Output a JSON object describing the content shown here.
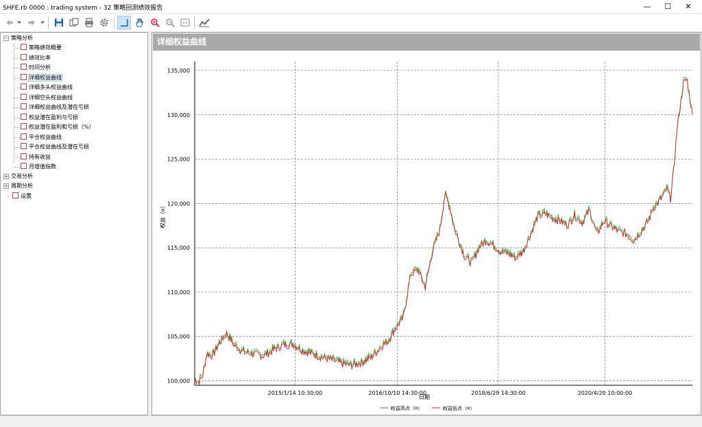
{
  "window": {
    "title": "SHFE.rb 0000 : trading system - 32 策略回测绩效报告",
    "minimize": "—",
    "maximize": "☐",
    "close": "✕"
  },
  "toolbar": {
    "back_icon": "arrow-left-icon",
    "dropdown_icon": "chevron-down-icon",
    "forward_icon": "arrow-right-icon",
    "save_icon": "save-icon",
    "copy_icon": "copy-icon",
    "print_icon": "print-icon",
    "settings_icon": "gear-icon",
    "crosshair_icon": "crosshair-icon",
    "hand_icon": "hand-icon",
    "zoom_in_icon": "zoom-in-icon",
    "zoom_out_icon": "zoom-out-icon",
    "fit_icon": "fit-icon",
    "chart_icon": "chart-icon"
  },
  "tree": {
    "root": "策略分析",
    "items": [
      "策略绩效概要",
      "绩效比率",
      "时间分析",
      "详细权益曲线",
      "详细多头权益曲线",
      "详细空头权益曲线",
      "详细权益曲线及潜在亏损",
      "权益潜在盈利与亏损",
      "权益潜在盈利和亏损（%）",
      "平仓权益曲线",
      "平仓权益曲线及潜在亏损",
      "持有收益",
      "月增值指数"
    ],
    "selected_index": 3,
    "groups": [
      "交易分析",
      "周期分析"
    ],
    "settings": "设置"
  },
  "panel": {
    "title": "详细权益曲线"
  },
  "chart_data": {
    "type": "line",
    "xlabel": "日期",
    "ylabel": "权益（¤）",
    "ylim": [
      99500,
      136000
    ],
    "y_ticks": [
      100000,
      105000,
      110000,
      115000,
      120000,
      125000,
      130000,
      135000
    ],
    "y_tick_labels": [
      "100,000",
      "105,000",
      "110,000",
      "115,000",
      "120,000",
      "125,000",
      "130,000",
      "135,000"
    ],
    "x_tick_labels": [
      "2015/1/14 10:30:00",
      "2016/10/10 14:30:00",
      "2018/6/29 14:30:00",
      "2020/4/20 10:00:00"
    ],
    "x_range": [
      "2013-05-01",
      "2021-10-15"
    ],
    "x_ticks": [
      "2015-01-14",
      "2016-10-10",
      "2018-06-29",
      "2020-04-20"
    ],
    "grid": true,
    "legend_position": "bottom",
    "series": [
      {
        "name": "权益高点（¤）",
        "color": "#2ca02c"
      },
      {
        "name": "权益低点（¤）",
        "color": "#d62728"
      }
    ],
    "x": [
      "2013-05-01",
      "2013-05-25",
      "2013-06-20",
      "2013-07-15",
      "2013-08-20",
      "2013-10-01",
      "2013-11-15",
      "2014-01-01",
      "2014-03-01",
      "2014-05-01",
      "2014-07-01",
      "2014-09-01",
      "2014-11-01",
      "2015-01-01",
      "2015-03-01",
      "2015-05-01",
      "2015-07-01",
      "2015-09-01",
      "2015-11-01",
      "2016-01-01",
      "2016-03-01",
      "2016-05-01",
      "2016-07-01",
      "2016-08-15",
      "2016-10-01",
      "2016-11-15",
      "2017-01-01",
      "2017-02-15",
      "2017-04-01",
      "2017-05-15",
      "2017-07-01",
      "2017-08-01",
      "2017-09-01",
      "2017-10-01",
      "2017-11-01",
      "2017-12-01",
      "2018-01-15",
      "2018-03-01",
      "2018-04-15",
      "2018-06-01",
      "2018-07-15",
      "2018-09-01",
      "2018-10-15",
      "2018-12-01",
      "2019-01-15",
      "2019-03-01",
      "2019-04-15",
      "2019-06-01",
      "2019-07-15",
      "2019-09-01",
      "2019-10-15",
      "2019-12-01",
      "2020-01-15",
      "2020-03-01",
      "2020-04-15",
      "2020-06-01",
      "2020-07-15",
      "2020-09-01",
      "2020-10-15",
      "2020-12-01",
      "2021-01-15",
      "2021-02-15",
      "2021-03-15",
      "2021-04-15",
      "2021-05-10",
      "2021-06-01",
      "2021-06-20",
      "2021-07-10",
      "2021-08-01",
      "2021-08-20",
      "2021-09-10",
      "2021-10-15"
    ],
    "values": [
      100200,
      99800,
      100500,
      103000,
      102800,
      104200,
      105300,
      104000,
      103200,
      103000,
      102800,
      103400,
      104000,
      104100,
      103400,
      103000,
      102600,
      102300,
      101900,
      101700,
      102000,
      102600,
      103800,
      104500,
      106000,
      107000,
      112000,
      112500,
      110500,
      114500,
      117000,
      121000,
      119500,
      117000,
      115500,
      114000,
      113200,
      115000,
      115800,
      115200,
      114500,
      114300,
      113800,
      114600,
      116500,
      118500,
      118800,
      118300,
      118000,
      117500,
      118600,
      117800,
      119200,
      116500,
      118000,
      117300,
      116800,
      116500,
      115800,
      116800,
      118000,
      119500,
      120000,
      120800,
      121600,
      120500,
      123500,
      128000,
      131000,
      133500,
      134000,
      130000
    ]
  }
}
